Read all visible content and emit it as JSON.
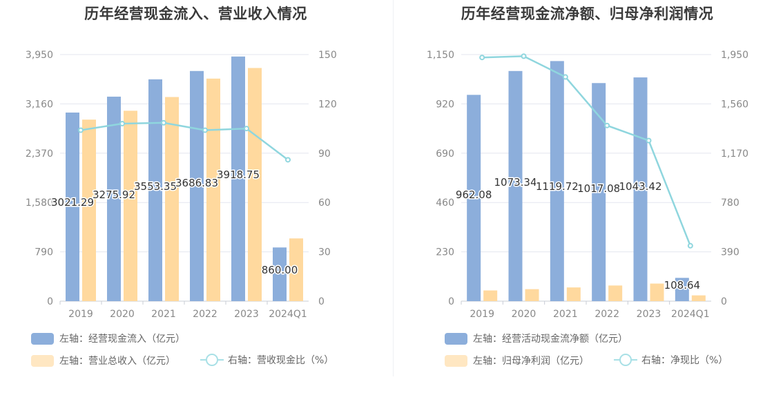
{
  "colors": {
    "bar1": "#8caedb",
    "bar2": "#ffd99e",
    "line": "#8fd6de",
    "axis_text": "#888888",
    "grid": "#e3e6ef",
    "title": "#3a3a3a"
  },
  "legend_icons": {
    "bar": "filled-rounded-rectangle",
    "line": "line-with-circle-marker"
  },
  "chart_data": [
    {
      "type": "bar",
      "title": "历年经营现金流入、营业收入情况",
      "categories": [
        "2019",
        "2020",
        "2021",
        "2022",
        "2023",
        "2024Q1"
      ],
      "y_left_ticks": [
        "0",
        "790",
        "1,580",
        "2,370",
        "3,160",
        "3,950"
      ],
      "y_right_ticks": [
        "0",
        "30",
        "60",
        "90",
        "120",
        "150"
      ],
      "y_left_range": [
        0,
        3950
      ],
      "y_right_range": [
        0,
        150
      ],
      "grid": true,
      "legend_position": "bottom-left",
      "series": [
        {
          "name": "左轴：经营现金流入（亿元）",
          "type": "bar",
          "axis": "left",
          "values": [
            3021.29,
            3275.92,
            3553.35,
            3686.83,
            3918.75,
            860.0
          ],
          "labels": [
            "3021.29",
            "3275.92",
            "3553.35",
            "3686.83",
            "3918.75",
            "860.00"
          ]
        },
        {
          "name": "左轴：营业总收入（亿元）",
          "type": "bar",
          "axis": "left",
          "values": [
            2908,
            3050,
            3270,
            3565,
            3735,
            1005
          ]
        },
        {
          "name": "右轴：营收现金比（%）",
          "type": "line",
          "axis": "right",
          "values": [
            104,
            108,
            108.5,
            104,
            105,
            86
          ]
        }
      ]
    },
    {
      "type": "bar",
      "title": "历年经营现金流净额、归母净利润情况",
      "categories": [
        "2019",
        "2020",
        "2021",
        "2022",
        "2023",
        "2024Q1"
      ],
      "y_left_ticks": [
        "0",
        "230",
        "460",
        "690",
        "920",
        "1,150"
      ],
      "y_right_ticks": [
        "0",
        "390",
        "780",
        "1,170",
        "1,560",
        "1,950"
      ],
      "y_left_range": [
        0,
        1150
      ],
      "y_right_range": [
        0,
        1950
      ],
      "grid": true,
      "legend_position": "bottom-left",
      "series": [
        {
          "name": "左轴：经营活动现金流净额（亿元）",
          "type": "bar",
          "axis": "left",
          "values": [
            962.08,
            1073.34,
            1119.72,
            1017.08,
            1043.42,
            108.64
          ],
          "labels": [
            "962.08",
            "1073.34",
            "1119.72",
            "1017.08",
            "1043.42",
            "108.64"
          ]
        },
        {
          "name": "左轴：归母净利润（亿元）",
          "type": "bar",
          "axis": "left",
          "values": [
            50,
            56,
            64,
            73,
            82,
            27
          ]
        },
        {
          "name": "右轴：净现比（%）",
          "type": "line",
          "axis": "right",
          "values": [
            1927,
            1937,
            1773,
            1389,
            1270,
            438
          ]
        }
      ]
    }
  ]
}
